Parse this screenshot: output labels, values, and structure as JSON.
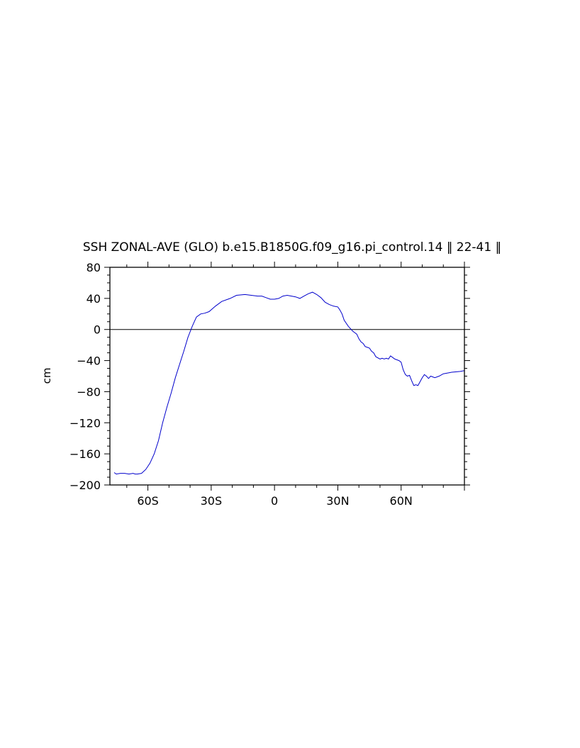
{
  "chart_data": {
    "type": "line",
    "title": "SSH ZONAL-AVE (GLO) b.e15.B1850G.f09_g16.pi_control.14 ‖ 22-41 ‖",
    "xlabel": "",
    "ylabel": "cm",
    "xlim": [
      -78,
      90
    ],
    "ylim": [
      -200,
      80
    ],
    "x_ticks": [
      {
        "value": -60,
        "label": "60S"
      },
      {
        "value": -30,
        "label": "30S"
      },
      {
        "value": 0,
        "label": "0"
      },
      {
        "value": 30,
        "label": "30N"
      },
      {
        "value": 60,
        "label": "60N"
      }
    ],
    "y_ticks": [
      {
        "value": 80,
        "label": "80"
      },
      {
        "value": 40,
        "label": "40"
      },
      {
        "value": 0,
        "label": "0"
      },
      {
        "value": -40,
        "label": "−40"
      },
      {
        "value": -80,
        "label": "−80"
      },
      {
        "value": -120,
        "label": "−120"
      },
      {
        "value": -160,
        "label": "−160"
      },
      {
        "value": -200,
        "label": "−200"
      }
    ],
    "reference_line": 0,
    "grid": false,
    "line_color": "#0000cc",
    "series": [
      {
        "x": [
          -76,
          -75,
          -73,
          -71,
          -69,
          -67,
          -66,
          -65,
          -63,
          -61,
          -59,
          -57,
          -55,
          -53,
          -51,
          -49,
          -47,
          -45,
          -43,
          -41,
          -40,
          -39,
          -38,
          -37,
          -35,
          -33,
          -31,
          -28,
          -25,
          -21,
          -18,
          -14,
          -11,
          -8,
          -6,
          -4,
          -2,
          0,
          2,
          4,
          6,
          8,
          10,
          12,
          14,
          16,
          18,
          20,
          22,
          24,
          26,
          28,
          30,
          31,
          32,
          33,
          35,
          36,
          37,
          38,
          39,
          40,
          41,
          42,
          43,
          44,
          45,
          46,
          47,
          48,
          50,
          51,
          52,
          53,
          54,
          55,
          56,
          57,
          58,
          59,
          60,
          61,
          62,
          63,
          64,
          65,
          66,
          67,
          68,
          69,
          70,
          71,
          72,
          73,
          74,
          75,
          76,
          78,
          80,
          84,
          88,
          90
        ],
        "y": [
          -184,
          -186,
          -185,
          -185,
          -186,
          -185,
          -186,
          -186,
          -185,
          -180,
          -172,
          -160,
          -143,
          -120,
          -100,
          -82,
          -62,
          -45,
          -28,
          -10,
          -3,
          4,
          10,
          16,
          20,
          21,
          23,
          30,
          36,
          40,
          44,
          45,
          44,
          43,
          43,
          41,
          39,
          39,
          40,
          43,
          44,
          43,
          42,
          40,
          43,
          46,
          48,
          45,
          41,
          35,
          32,
          30,
          29,
          25,
          20,
          12,
          4,
          1,
          -2,
          -4,
          -6,
          -12,
          -16,
          -18,
          -22,
          -23,
          -24,
          -28,
          -30,
          -35,
          -38,
          -37,
          -38,
          -37,
          -38,
          -34,
          -36,
          -38,
          -39,
          -40,
          -42,
          -52,
          -58,
          -60,
          -59,
          -66,
          -72,
          -71,
          -72,
          -67,
          -62,
          -58,
          -60,
          -63,
          -60,
          -61,
          -62,
          -60,
          -57,
          -55,
          -54,
          -53
        ]
      }
    ]
  }
}
